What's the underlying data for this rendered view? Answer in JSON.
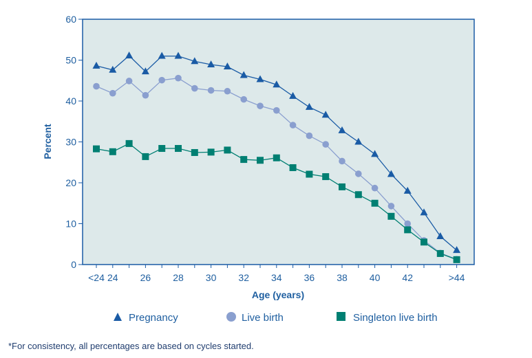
{
  "chart_data": {
    "type": "line",
    "xlabel": "Age (years)",
    "ylabel": "Percent",
    "ylim": [
      0,
      60
    ],
    "yticks": [
      0,
      10,
      20,
      30,
      40,
      50,
      60
    ],
    "categories": [
      "<24",
      "24",
      "25",
      "26",
      "27",
      "28",
      "29",
      "30",
      "31",
      "32",
      "33",
      "34",
      "35",
      "36",
      "37",
      "38",
      "39",
      "40",
      "41",
      "42",
      "43",
      "44",
      ">44"
    ],
    "x_tick_labels": [
      "<24",
      "24",
      "26",
      "28",
      "30",
      "32",
      "34",
      "36",
      "38",
      "40",
      "42",
      ">44"
    ],
    "x_tick_labels_at": [
      "<24",
      "24",
      "26",
      "28",
      "30",
      "32",
      "34",
      "36",
      "38",
      "40",
      "42",
      ">44"
    ],
    "grid": false,
    "legend_position": "bottom",
    "plot_background": "#dde9ea",
    "series": [
      {
        "name": "Pregnancy",
        "marker": "triangle",
        "color": "#1a5ba5",
        "values": [
          48.6,
          47.6,
          51.1,
          47.2,
          51.0,
          51.0,
          49.7,
          48.9,
          48.4,
          46.3,
          45.3,
          44.0,
          41.2,
          38.5,
          36.6,
          32.8,
          30.0,
          27.0,
          22.1,
          18.0,
          12.7,
          6.9,
          3.5
        ]
      },
      {
        "name": "Live birth",
        "marker": "circle",
        "color": "#8a9fcf",
        "values": [
          43.6,
          41.9,
          44.9,
          41.4,
          45.1,
          45.6,
          43.1,
          42.6,
          42.4,
          40.4,
          38.8,
          37.7,
          34.1,
          31.5,
          29.4,
          25.3,
          22.2,
          18.7,
          14.3,
          10.0,
          5.9,
          2.8,
          1.3
        ]
      },
      {
        "name": "Singleton live birth",
        "marker": "square",
        "color": "#007f72",
        "values": [
          28.3,
          27.6,
          29.6,
          26.4,
          28.4,
          28.4,
          27.4,
          27.5,
          28.0,
          25.7,
          25.5,
          26.1,
          23.7,
          22.1,
          21.5,
          19.0,
          17.1,
          15.0,
          11.8,
          8.5,
          5.5,
          2.7,
          1.2
        ]
      }
    ],
    "footnote": "*For consistency, all percentages are based on cycles started."
  },
  "colors": {
    "axis": "#1f5fa0",
    "plot_border": "#1a5ba5",
    "line": "#1f3c6e"
  }
}
